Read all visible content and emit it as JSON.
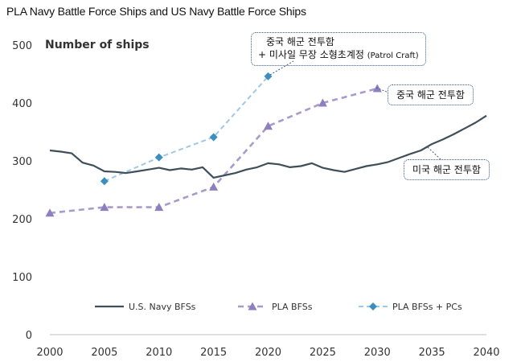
{
  "header": {
    "title": "PLA Navy Battle Force Ships and US Navy Battle Force Ships"
  },
  "colors": {
    "us": "#3f4f5a",
    "pla": "#a79bc9",
    "pla_marker": "#8f7fbf",
    "pc": "#9ec8e6",
    "pc_marker": "#3a8fbf",
    "axis": "#bfbfbf"
  },
  "callouts": {
    "pc": {
      "line1": "중국 해군 전투함",
      "line2_prefix": "+  미사일 무장 소형초계정",
      "line2_suffix": "(Patrol Craft)"
    },
    "pla": {
      "text": "중국 해군 전투함"
    },
    "us": {
      "text": "미국 해군 전투함"
    }
  },
  "chart_data": {
    "type": "line",
    "title": "PLA Navy Battle Force Ships and US Navy Battle Force Ships",
    "ylabel": "Number of ships",
    "xlabel": "",
    "xlim": [
      2000,
      2040
    ],
    "ylim": [
      0,
      500
    ],
    "xticks": [
      2000,
      2005,
      2010,
      2015,
      2020,
      2025,
      2030,
      2035,
      2040
    ],
    "yticks": [
      0,
      100,
      200,
      300,
      400,
      500
    ],
    "grid": false,
    "legend": "bottom",
    "series": [
      {
        "name": "U.S. Navy BFSs",
        "key": "us",
        "style": "solid",
        "marker": "none",
        "x": [
          2000,
          2001,
          2002,
          2003,
          2004,
          2005,
          2006,
          2007,
          2008,
          2009,
          2010,
          2011,
          2012,
          2013,
          2014,
          2015,
          2016,
          2017,
          2018,
          2019,
          2020,
          2021,
          2022,
          2023,
          2024,
          2025,
          2026,
          2027,
          2028,
          2029,
          2030,
          2031,
          2032,
          2033,
          2034,
          2035,
          2036,
          2037,
          2038,
          2039,
          2040
        ],
        "y": [
          318,
          316,
          313,
          297,
          292,
          282,
          281,
          279,
          282,
          285,
          288,
          284,
          287,
          285,
          289,
          271,
          275,
          279,
          285,
          289,
          296,
          294,
          289,
          291,
          296,
          288,
          284,
          281,
          286,
          291,
          294,
          298,
          305,
          312,
          318,
          329,
          337,
          346,
          356,
          366,
          378
        ]
      },
      {
        "name": "PLA BFSs",
        "key": "pla",
        "style": "dashed",
        "marker": "triangle",
        "x": [
          2000,
          2005,
          2010,
          2015,
          2020,
          2025,
          2030
        ],
        "y": [
          210,
          220,
          220,
          255,
          360,
          400,
          425
        ]
      },
      {
        "name": "PLA BFSs + PCs",
        "key": "pc",
        "style": "dashed",
        "marker": "diamond",
        "x": [
          2005,
          2010,
          2015,
          2020
        ],
        "y": [
          265,
          306,
          341,
          446
        ]
      }
    ]
  }
}
